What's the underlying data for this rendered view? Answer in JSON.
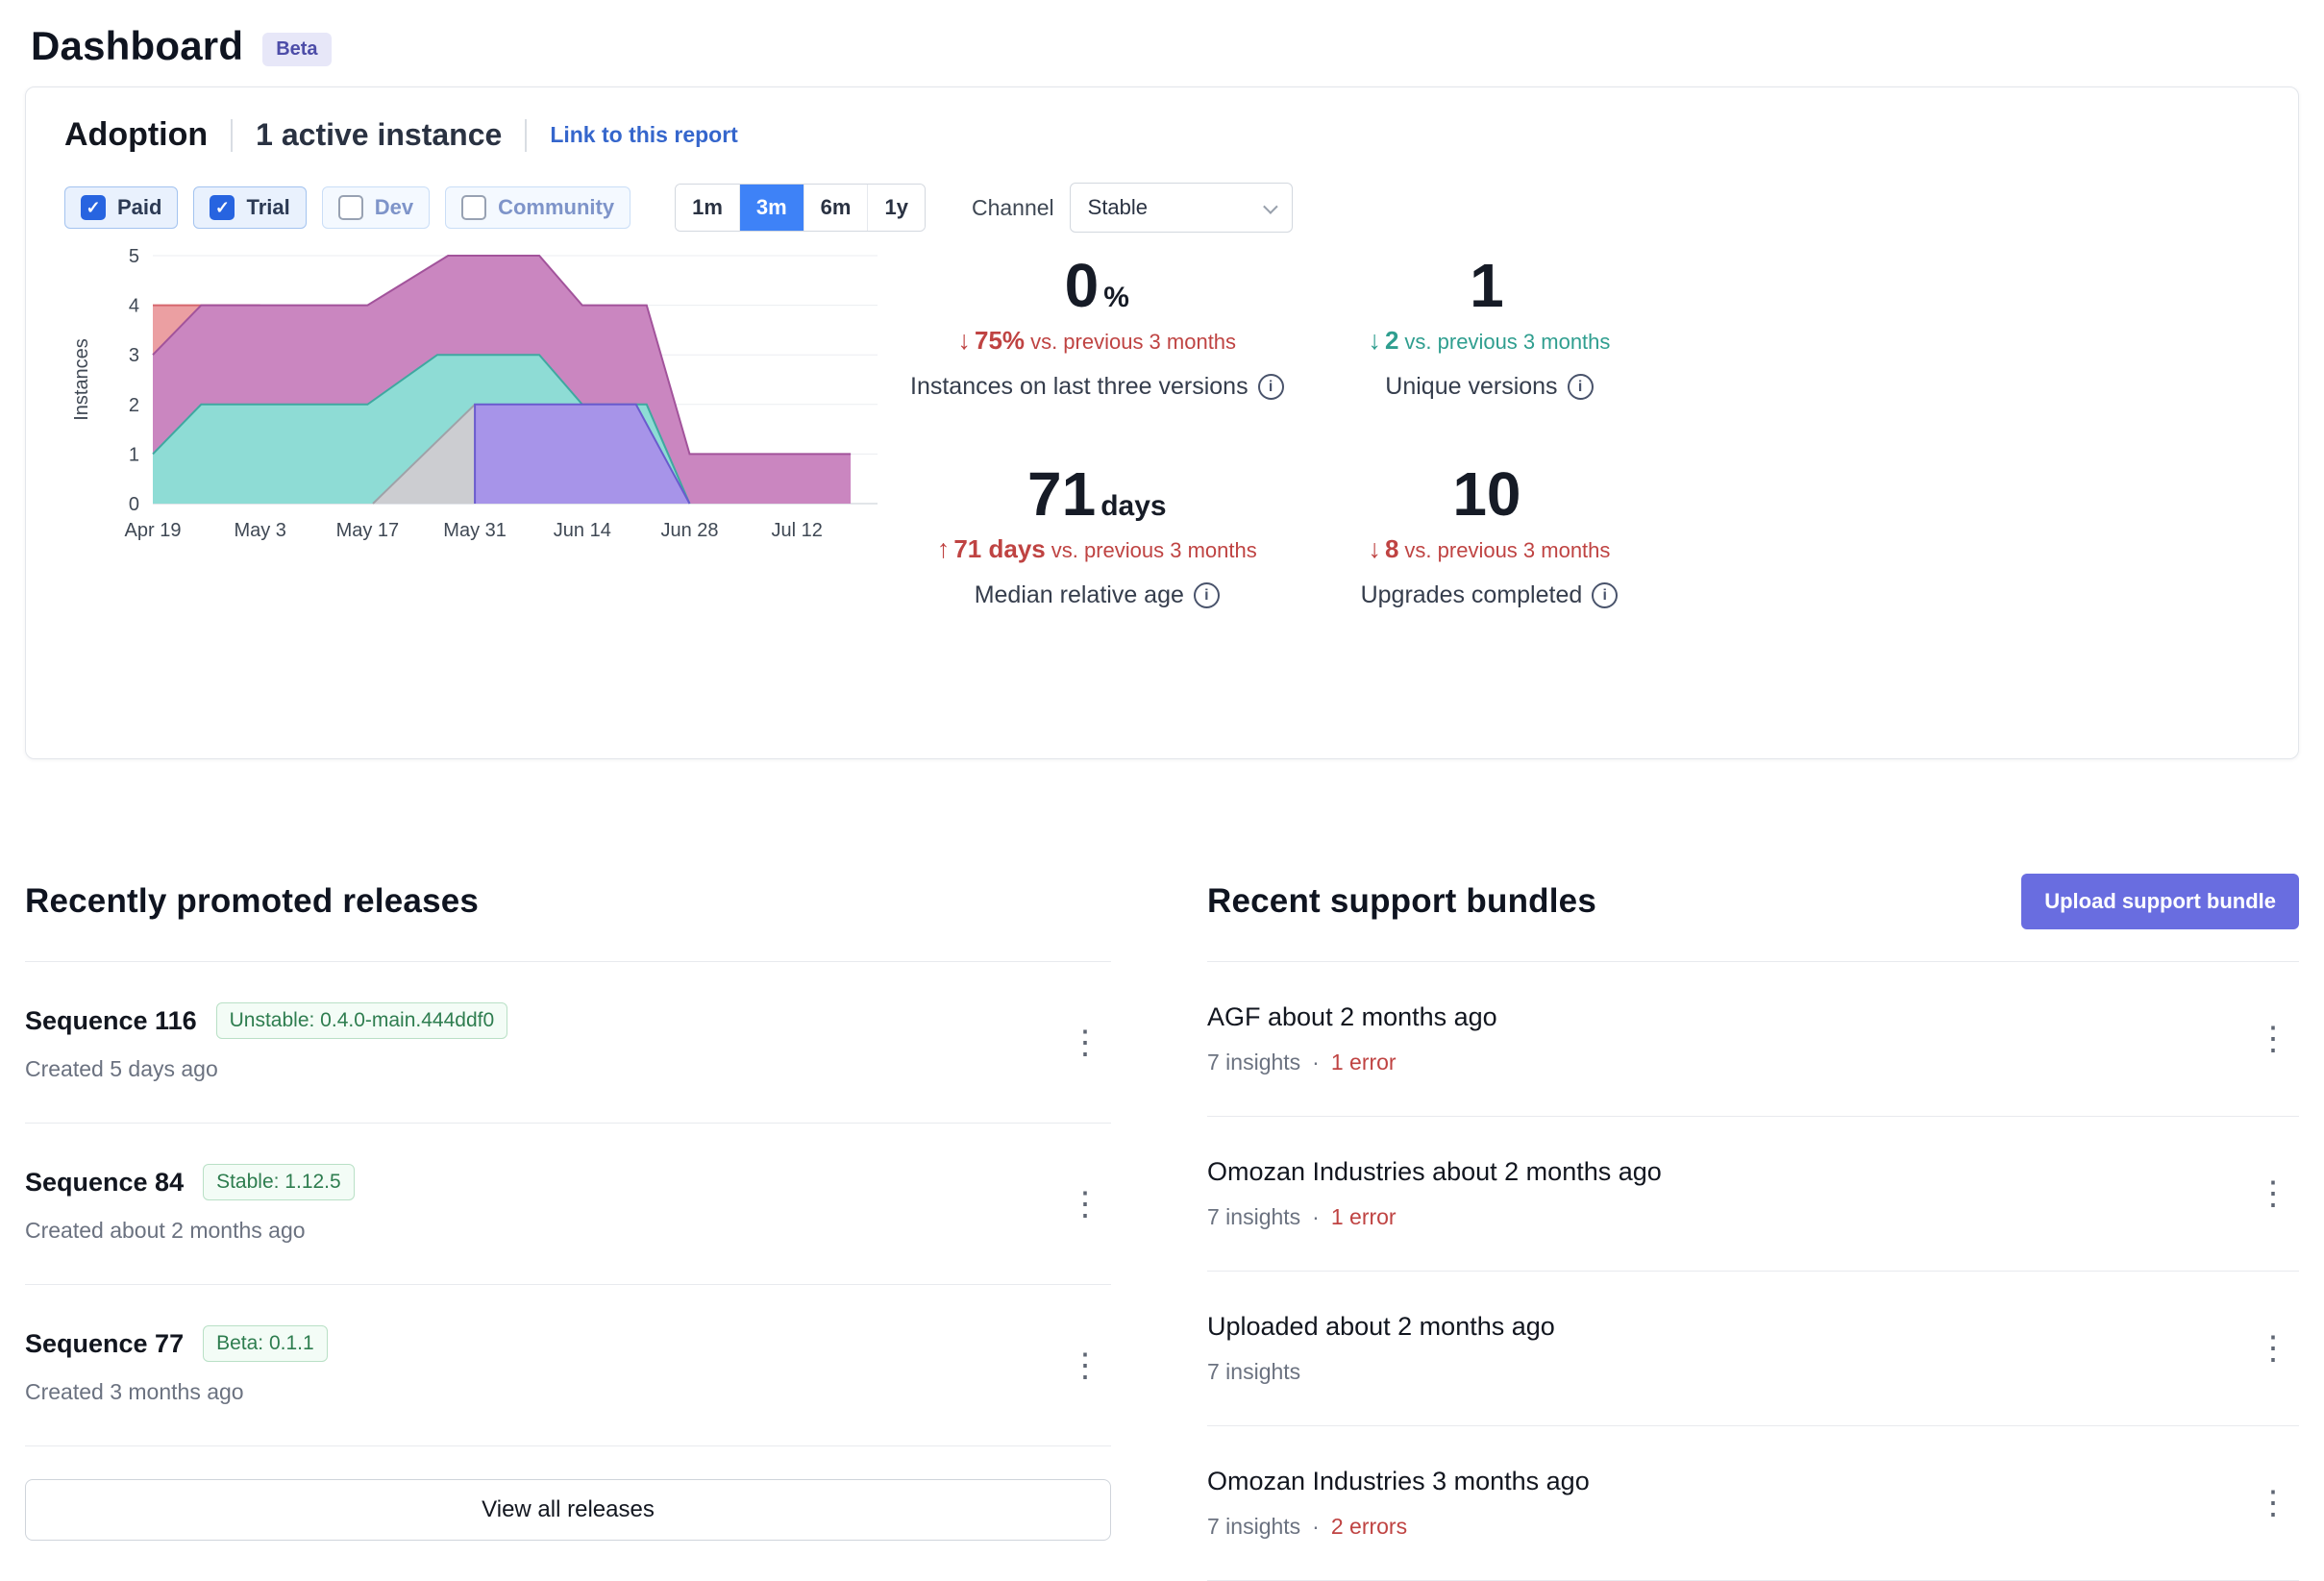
{
  "page": {
    "title": "Dashboard",
    "beta": "Beta"
  },
  "colors": {
    "accent_blue": "#3e82f7",
    "link_blue": "#3566cc",
    "negative_red": "#bf4342",
    "positive_teal": "#2f9e8f",
    "upload_indigo": "#696de0",
    "badge_green": "#2e7d4f"
  },
  "icons": {
    "check": "✓",
    "kebab": "⋮",
    "info": "i",
    "dot": "·"
  },
  "adoption": {
    "title": "Adoption",
    "subtitle": "1 active instance",
    "report_link": "Link to this report",
    "filters": [
      {
        "label": "Paid",
        "checked": true
      },
      {
        "label": "Trial",
        "checked": true
      },
      {
        "label": "Dev",
        "checked": false
      },
      {
        "label": "Community",
        "checked": false
      }
    ],
    "ranges": [
      {
        "label": "1m",
        "active": false
      },
      {
        "label": "3m",
        "active": true
      },
      {
        "label": "6m",
        "active": false
      },
      {
        "label": "1y",
        "active": false
      }
    ],
    "channel": {
      "label": "Channel",
      "value": "Stable"
    },
    "stats": [
      {
        "value": "0",
        "unit": "%",
        "delta": "75%",
        "suffix": "vs. previous 3 months",
        "direction": "down",
        "delta_color": "red",
        "label": "Instances on last three versions"
      },
      {
        "value": "1",
        "unit": "",
        "delta": "2",
        "suffix": "vs. previous 3 months",
        "direction": "down",
        "delta_color": "teal",
        "label": "Unique versions"
      },
      {
        "value": "71",
        "unit": "days",
        "delta": "71 days",
        "suffix": "vs. previous 3 months",
        "direction": "up",
        "delta_color": "red",
        "label": "Median relative age"
      },
      {
        "value": "10",
        "unit": "",
        "delta": "8",
        "suffix": "vs. previous 3 months",
        "direction": "down",
        "delta_color": "red",
        "label": "Upgrades completed"
      }
    ]
  },
  "chart_data": {
    "type": "area",
    "title": "Adoption instances over time",
    "xlabel": "",
    "ylabel": "Instances",
    "ylim": [
      0,
      5
    ],
    "xmax": 13.5,
    "x_unit": "weeks since Apr 19",
    "x_ticks": [
      {
        "x": 0,
        "label": "Apr 19"
      },
      {
        "x": 2,
        "label": "May 3"
      },
      {
        "x": 4,
        "label": "May 17"
      },
      {
        "x": 6,
        "label": "May 31"
      },
      {
        "x": 8,
        "label": "Jun 14"
      },
      {
        "x": 10,
        "label": "Jun 28"
      },
      {
        "x": 12,
        "label": "Jul 12"
      }
    ],
    "series": [
      {
        "name": "version-salmon",
        "fill": "#eb9fa2",
        "stroke": "#d5686e",
        "points": [
          [
            0,
            4
          ],
          [
            2,
            4
          ]
        ]
      },
      {
        "name": "version-magenta",
        "fill": "#ca86c0",
        "stroke": "#a2539b",
        "points": [
          [
            0,
            3
          ],
          [
            0.9,
            4
          ],
          [
            4,
            4
          ],
          [
            5.5,
            5
          ],
          [
            7.2,
            5
          ],
          [
            8,
            4
          ],
          [
            9.2,
            4
          ],
          [
            10,
            1
          ],
          [
            13,
            1
          ]
        ]
      },
      {
        "name": "version-teal",
        "fill": "#8edcd5",
        "stroke": "#3fa8a0",
        "points": [
          [
            0,
            1
          ],
          [
            0.9,
            2
          ],
          [
            4,
            2
          ],
          [
            5.3,
            3
          ],
          [
            7.2,
            3
          ],
          [
            8,
            2
          ],
          [
            9.2,
            2
          ],
          [
            10,
            0
          ]
        ]
      },
      {
        "name": "version-gray",
        "fill": "#cccdd1",
        "stroke": "#9fa2a8",
        "points": [
          [
            4.1,
            0
          ],
          [
            6,
            2
          ]
        ]
      },
      {
        "name": "version-purple",
        "fill": "#a794e9",
        "stroke": "#6a5ace",
        "points": [
          [
            6,
            0
          ],
          [
            6,
            2
          ],
          [
            9,
            2
          ],
          [
            10,
            0
          ]
        ]
      }
    ]
  },
  "releases": {
    "title": "Recently promoted releases",
    "view_all": "View all releases",
    "items": [
      {
        "name": "Sequence 116",
        "badge": "Unstable: 0.4.0-main.444ddf0",
        "created": "Created 5 days ago"
      },
      {
        "name": "Sequence 84",
        "badge": "Stable: 1.12.5",
        "created": "Created about 2 months ago"
      },
      {
        "name": "Sequence 77",
        "badge": "Beta: 0.1.1",
        "created": "Created 3 months ago"
      }
    ]
  },
  "support_bundles": {
    "title": "Recent support bundles",
    "upload_button": "Upload support bundle",
    "items": [
      {
        "name": "AGF about 2 months ago",
        "insights": "7 insights",
        "errors": "1 error"
      },
      {
        "name": "Omozan Industries about 2 months ago",
        "insights": "7 insights",
        "errors": "1 error"
      },
      {
        "name": "Uploaded about 2 months ago",
        "insights": "7 insights",
        "errors": ""
      },
      {
        "name": "Omozan Industries 3 months ago",
        "insights": "7 insights",
        "errors": "2 errors"
      }
    ]
  }
}
